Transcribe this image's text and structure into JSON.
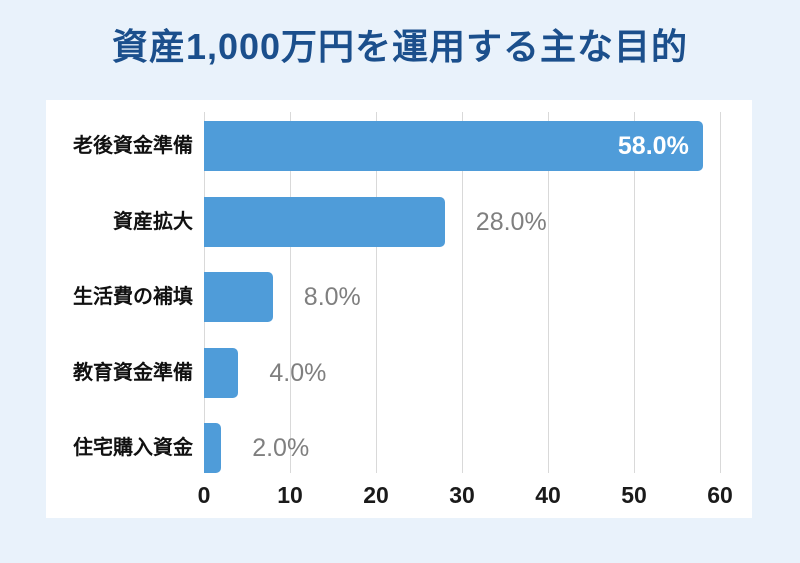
{
  "page": {
    "background_color": "#e9f2fb",
    "card_color": "#ffffff"
  },
  "chart_data": {
    "type": "bar",
    "orientation": "horizontal",
    "title": "資産1,000万円を運用する主な目的",
    "title_color": "#1b4f8c",
    "categories": [
      "老後資金準備",
      "資産拡大",
      "生活費の補填",
      "教育資金準備",
      "住宅購入資金"
    ],
    "values": [
      58.0,
      28.0,
      8.0,
      4.0,
      2.0
    ],
    "value_labels": [
      "58.0%",
      "28.0%",
      "8.0%",
      "4.0%",
      "2.0%"
    ],
    "value_label_placement": [
      "inside",
      "outside",
      "outside",
      "outside",
      "outside"
    ],
    "xlabel": "",
    "ylabel": "",
    "xlim": [
      0,
      60
    ],
    "xticks": [
      0,
      10,
      20,
      30,
      40,
      50,
      60
    ],
    "grid": true,
    "legend": "none",
    "bar_color": "#4f9cd9",
    "gridline_color": "#d9d9d9",
    "category_label_color": "#111111",
    "tick_label_color": "#1a1a1a",
    "inside_label_color": "#ffffff",
    "outside_label_color": "#7f7f7f"
  }
}
